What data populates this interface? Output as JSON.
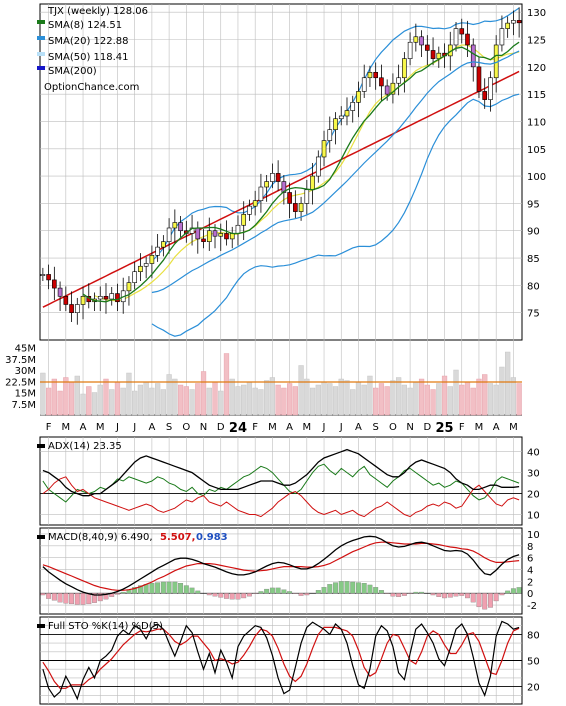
{
  "chart_data": [
    {
      "panel": "price",
      "type": "candlestick",
      "title": "TJX (weekly) 128.06",
      "watermark": "OptionChance.com",
      "y_ticks": [
        75,
        80,
        85,
        90,
        95,
        100,
        105,
        110,
        115,
        120,
        125,
        130
      ],
      "ylim": [
        70,
        131.5
      ],
      "x_month_labels": [
        "F",
        "M",
        "A",
        "M",
        "J",
        "J",
        "A",
        "S",
        "O",
        "N",
        "D",
        "24",
        "F",
        "M",
        "A",
        "M",
        "J",
        "J",
        "A",
        "S",
        "O",
        "N",
        "D",
        "25",
        "F",
        "M",
        "A",
        "M"
      ],
      "legend": [
        {
          "label": "SMA(8) 124.51",
          "color": "#1a7a1a"
        },
        {
          "label": "SMA(20) 122.88",
          "color": "#2b8fd8"
        },
        {
          "label": "SMA(50) 118.41",
          "color": "#b8e0f8"
        },
        {
          "label": "SMA(200)",
          "color": "#1515c8"
        }
      ],
      "series": [
        {
          "name": "close",
          "values": [
            82.0,
            81.0,
            79.5,
            78.0,
            76.5,
            75.0,
            76.5,
            78.0,
            77.0,
            77.5,
            78.0,
            77.5,
            78.5,
            77.0,
            79.0,
            80.5,
            82.5,
            83.5,
            84.0,
            85.5,
            87.0,
            88.0,
            90.5,
            91.5,
            90.0,
            89.5,
            90.5,
            88.5,
            88.0,
            90.0,
            89.0,
            89.5,
            88.5,
            89.5,
            91.0,
            93.0,
            94.5,
            95.5,
            98.0,
            99.0,
            100.5,
            99.0,
            97.0,
            95.0,
            93.5,
            95.0,
            97.5,
            100.0,
            103.5,
            106.5,
            108.5,
            110.5,
            111.0,
            112.0,
            113.5,
            115.5,
            118.0,
            119.0,
            118.0,
            116.5,
            115.0,
            117.0,
            118.0,
            121.5,
            124.5,
            125.5,
            124.0,
            123.0,
            121.5,
            122.5,
            122.0,
            124.0,
            127.0,
            126.0,
            124.0,
            120.0,
            115.5,
            114.0,
            118.0,
            124.0,
            127.0,
            128.0,
            128.5,
            128.06
          ]
        },
        {
          "name": "SMA(8)",
          "values": [
            null,
            null,
            null,
            null,
            null,
            null,
            null,
            78.4,
            77.7,
            77.2,
            77.1,
            77.0,
            77.4,
            77.4,
            77.9,
            78.3,
            79.1,
            79.9,
            80.9,
            82.0,
            83.3,
            84.6,
            86.2,
            87.6,
            88.7,
            89.6,
            90.4,
            90.5,
            90.5,
            90.6,
            90.6,
            90.3,
            89.9,
            89.5,
            89.5,
            89.7,
            90.1,
            91.0,
            92.2,
            93.5,
            95.0,
            96.2,
            97.2,
            97.7,
            97.9,
            97.8,
            97.6,
            97.5,
            97.8,
            98.3,
            99.4,
            101.1,
            103.1,
            105.1,
            107.0,
            108.6,
            110.1,
            111.2,
            112.5,
            113.7,
            114.5,
            115.4,
            116.3,
            117.1,
            117.9,
            118.9,
            119.3,
            120.0,
            120.8,
            121.4,
            122.0,
            122.8,
            123.4,
            123.6,
            123.1,
            122.4,
            121.8,
            121.7,
            121.3,
            122.1,
            122.1,
            122.8,
            123.8,
            124.51
          ]
        },
        {
          "name": "SMA(20)",
          "values": [
            null,
            null,
            null,
            null,
            null,
            null,
            null,
            null,
            null,
            null,
            null,
            null,
            null,
            null,
            null,
            null,
            null,
            null,
            null,
            78.7,
            78.9,
            79.3,
            79.9,
            80.6,
            81.3,
            82.0,
            82.7,
            83.2,
            83.8,
            84.4,
            84.9,
            85.5,
            86.0,
            86.5,
            87.1,
            87.7,
            88.3,
            88.9,
            89.6,
            90.2,
            90.9,
            91.5,
            91.8,
            92.0,
            92.2,
            92.5,
            92.9,
            93.4,
            94.2,
            95.1,
            96.1,
            97.1,
            98.1,
            99.1,
            100.2,
            101.3,
            102.4,
            103.4,
            104.4,
            105.4,
            106.4,
            107.5,
            108.6,
            109.9,
            111.2,
            112.6,
            113.9,
            115.2,
            116.3,
            117.3,
            118.0,
            118.7,
            119.5,
            120.2,
            120.7,
            120.9,
            120.8,
            120.6,
            120.5,
            120.8,
            121.3,
            121.8,
            122.4,
            122.88
          ]
        }
      ]
    },
    {
      "panel": "volume",
      "type": "bar",
      "y_ticks": [
        "45M",
        "37.5M",
        "30M",
        "22.5M",
        "15M",
        "7.5M"
      ],
      "ylim": [
        0,
        50
      ],
      "values": [
        28,
        18,
        24,
        16,
        25,
        22,
        26,
        14,
        19,
        15,
        20,
        24,
        17,
        22,
        18,
        28,
        16,
        20,
        22,
        18,
        21,
        17,
        27,
        24,
        20,
        19,
        17,
        21,
        29,
        18,
        22,
        16,
        41,
        24,
        19,
        20,
        22,
        18,
        17,
        23,
        25,
        20,
        18,
        21,
        19,
        33,
        24,
        18,
        20,
        22,
        21,
        19,
        24,
        23,
        17,
        22,
        20,
        26,
        18,
        21,
        19,
        23,
        25,
        20,
        18,
        22,
        24,
        20,
        17,
        21,
        26,
        19,
        30,
        20,
        22,
        18,
        24,
        27,
        21,
        20,
        32,
        42,
        25,
        21
      ],
      "avg": 22.0
    },
    {
      "panel": "adx",
      "type": "line",
      "title": "ADX(14) 23.35",
      "y_ticks": [
        40,
        30,
        20,
        10
      ],
      "ylim": [
        5,
        47
      ],
      "series": [
        {
          "name": "ADX",
          "values": [
            31,
            30,
            28,
            26,
            23,
            21,
            20,
            19,
            19,
            20,
            20,
            22,
            24,
            26,
            29,
            32,
            35,
            37,
            38,
            37,
            36,
            35,
            34,
            33,
            32,
            31,
            30,
            28,
            26,
            24,
            23,
            22,
            22,
            22,
            22,
            23,
            24,
            25,
            26,
            26,
            26,
            25,
            24,
            24,
            25,
            27,
            29,
            32,
            35,
            37,
            38,
            39,
            40,
            41,
            40,
            39,
            37,
            35,
            33,
            31,
            29,
            28,
            28,
            30,
            33,
            35,
            36,
            35,
            34,
            33,
            32,
            30,
            27,
            25,
            24,
            22,
            22,
            23,
            24,
            24,
            23,
            23,
            23,
            23.35
          ]
        },
        {
          "name": "+DI",
          "values": [
            26,
            22,
            20,
            18,
            16,
            19,
            22,
            21,
            20,
            21,
            23,
            22,
            24,
            27,
            26,
            28,
            27,
            26,
            25,
            26,
            28,
            27,
            25,
            24,
            22,
            21,
            23,
            20,
            19,
            22,
            21,
            23,
            22,
            24,
            26,
            28,
            29,
            31,
            33,
            32,
            30,
            27,
            24,
            21,
            20,
            22,
            26,
            30,
            33,
            34,
            31,
            29,
            32,
            30,
            28,
            31,
            33,
            29,
            27,
            25,
            23,
            26,
            28,
            31,
            32,
            30,
            28,
            26,
            24,
            25,
            23,
            24,
            26,
            25,
            22,
            19,
            17,
            18,
            21,
            26,
            28,
            27,
            26,
            25
          ]
        },
        {
          "name": "-DI",
          "values": [
            20,
            22,
            25,
            27,
            28,
            24,
            21,
            22,
            20,
            18,
            17,
            16,
            15,
            14,
            13,
            12,
            13,
            14,
            15,
            14,
            12,
            11,
            12,
            13,
            15,
            17,
            16,
            18,
            19,
            16,
            15,
            14,
            16,
            14,
            12,
            11,
            10,
            10,
            9,
            11,
            13,
            16,
            18,
            20,
            21,
            19,
            16,
            13,
            11,
            10,
            11,
            12,
            10,
            11,
            12,
            10,
            9,
            11,
            13,
            14,
            16,
            14,
            12,
            10,
            9,
            11,
            12,
            14,
            15,
            14,
            16,
            15,
            13,
            14,
            18,
            22,
            24,
            21,
            18,
            15,
            14,
            17,
            18,
            17
          ]
        }
      ]
    },
    {
      "panel": "macd",
      "type": "line",
      "title": "MACD(8,40,9) 6.490,",
      "signal_label": "5.507,",
      "hist_label": "0.983",
      "y_ticks": [
        10,
        8,
        6,
        4,
        2,
        0,
        -2
      ],
      "ylim": [
        -3.5,
        11
      ],
      "series": [
        {
          "name": "MACD",
          "values": [
            4.5,
            3.6,
            2.9,
            2.2,
            1.6,
            1.1,
            0.6,
            0.2,
            -0.1,
            -0.3,
            -0.3,
            -0.2,
            0.0,
            0.3,
            0.7,
            1.2,
            1.8,
            2.4,
            3.0,
            3.6,
            4.2,
            4.7,
            5.2,
            5.7,
            5.9,
            5.9,
            5.7,
            5.4,
            5.0,
            4.7,
            4.4,
            4.0,
            3.6,
            3.3,
            3.1,
            3.1,
            3.3,
            3.6,
            4.1,
            4.6,
            5.0,
            5.2,
            5.1,
            4.8,
            4.4,
            4.1,
            4.1,
            4.4,
            5.0,
            5.7,
            6.5,
            7.3,
            8.0,
            8.5,
            8.9,
            9.2,
            9.5,
            9.6,
            9.5,
            9.1,
            8.5,
            8.0,
            7.8,
            7.9,
            8.2,
            8.5,
            8.6,
            8.4,
            8.0,
            7.6,
            7.2,
            7.1,
            7.2,
            7.1,
            6.6,
            5.6,
            4.3,
            3.3,
            3.1,
            3.9,
            4.9,
            5.7,
            6.2,
            6.49
          ]
        },
        {
          "name": "Signal",
          "values": [
            4.8,
            4.5,
            4.1,
            3.7,
            3.3,
            2.9,
            2.5,
            2.1,
            1.7,
            1.3,
            1.0,
            0.8,
            0.6,
            0.5,
            0.5,
            0.6,
            0.8,
            1.1,
            1.5,
            1.9,
            2.4,
            2.8,
            3.3,
            3.8,
            4.2,
            4.6,
            4.8,
            5.0,
            5.0,
            5.0,
            4.9,
            4.7,
            4.5,
            4.3,
            4.1,
            3.9,
            3.8,
            3.7,
            3.8,
            3.9,
            4.1,
            4.3,
            4.5,
            4.5,
            4.5,
            4.5,
            4.4,
            4.4,
            4.5,
            4.7,
            5.0,
            5.5,
            6.0,
            6.5,
            7.0,
            7.4,
            7.8,
            8.2,
            8.5,
            8.6,
            8.6,
            8.5,
            8.4,
            8.3,
            8.3,
            8.3,
            8.4,
            8.4,
            8.3,
            8.2,
            8.0,
            7.8,
            7.7,
            7.5,
            7.4,
            7.1,
            6.6,
            6.0,
            5.5,
            5.2,
            5.2,
            5.3,
            5.4,
            5.507
          ]
        }
      ]
    },
    {
      "panel": "stochastic",
      "type": "line",
      "title": "Full STO %K(14) %D(5)",
      "y_ticks": [
        80,
        50,
        20
      ],
      "ylim": [
        0,
        100
      ],
      "series": [
        {
          "name": "%K",
          "values": [
            40,
            18,
            8,
            14,
            32,
            20,
            6,
            28,
            42,
            30,
            50,
            55,
            62,
            78,
            85,
            80,
            90,
            86,
            75,
            88,
            92,
            86,
            70,
            55,
            72,
            90,
            82,
            60,
            40,
            58,
            36,
            62,
            48,
            30,
            66,
            78,
            84,
            90,
            88,
            76,
            56,
            30,
            12,
            16,
            42,
            70,
            88,
            94,
            90,
            86,
            80,
            92,
            86,
            70,
            44,
            22,
            18,
            40,
            78,
            90,
            84,
            66,
            36,
            28,
            58,
            86,
            92,
            82,
            70,
            52,
            44,
            64,
            86,
            92,
            80,
            54,
            24,
            10,
            32,
            78,
            95,
            92,
            86,
            88
          ]
        },
        {
          "name": "%D",
          "values": [
            48,
            38,
            26,
            18,
            18,
            22,
            22,
            22,
            28,
            32,
            40,
            46,
            52,
            60,
            68,
            74,
            80,
            84,
            83,
            84,
            86,
            86,
            80,
            72,
            68,
            72,
            78,
            78,
            70,
            62,
            50,
            52,
            50,
            46,
            48,
            56,
            66,
            78,
            86,
            84,
            78,
            64,
            46,
            32,
            26,
            32,
            46,
            64,
            80,
            88,
            88,
            88,
            86,
            84,
            78,
            62,
            42,
            32,
            36,
            52,
            70,
            80,
            78,
            64,
            50,
            46,
            60,
            78,
            84,
            80,
            68,
            58,
            58,
            68,
            80,
            82,
            72,
            54,
            36,
            34,
            50,
            70,
            84,
            87
          ]
        }
      ]
    }
  ]
}
